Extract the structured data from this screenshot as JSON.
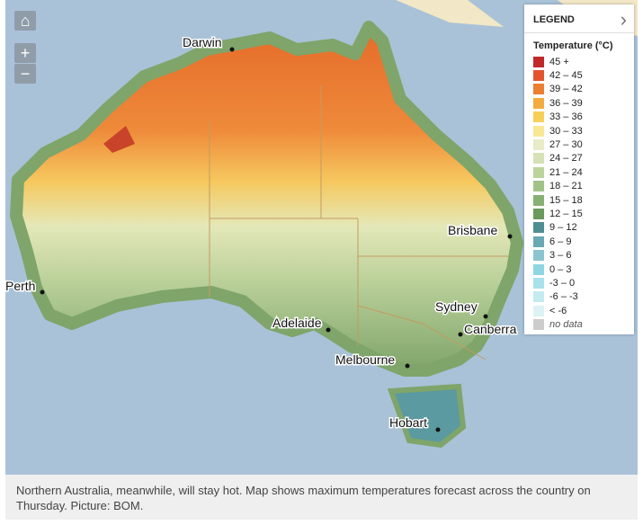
{
  "cities": [
    "Darwin",
    "Brisbane",
    "Perth",
    "Sydney",
    "Adelaide",
    "Canberra",
    "Melbourne",
    "Hobart"
  ],
  "legend": {
    "title": "LEGEND",
    "subtitle": "Temperature (°C)",
    "items": [
      {
        "label": "45 +",
        "color": "#c0282a"
      },
      {
        "label": "42 – 45",
        "color": "#e2542e"
      },
      {
        "label": "39 – 42",
        "color": "#eb7f33"
      },
      {
        "label": "36 – 39",
        "color": "#f2ac3e"
      },
      {
        "label": "33 – 36",
        "color": "#f7cf59"
      },
      {
        "label": "30 – 33",
        "color": "#f8e795"
      },
      {
        "label": "27 – 30",
        "color": "#e8ebc7"
      },
      {
        "label": "24 – 27",
        "color": "#d4e2b6"
      },
      {
        "label": "21 – 24",
        "color": "#bcd39e"
      },
      {
        "label": "18 – 21",
        "color": "#a2c388"
      },
      {
        "label": "15 – 18",
        "color": "#87b173"
      },
      {
        "label": "12 – 15",
        "color": "#6a9a5c"
      },
      {
        "label": "9 – 12",
        "color": "#4e8f93"
      },
      {
        "label": "6 – 9",
        "color": "#68a9b2"
      },
      {
        "label": "3 – 6",
        "color": "#8ac5cf"
      },
      {
        "label": "0 – 3",
        "color": "#8fd6e3"
      },
      {
        "label": "-3 – 0",
        "color": "#a7e2ea"
      },
      {
        "label": "-6 – -3",
        "color": "#c4ebef"
      },
      {
        "label": "< -6",
        "color": "#ddf2f4"
      },
      {
        "label": "no data",
        "color": "#cccccc"
      }
    ]
  },
  "caption": "Northern Australia, meanwhile, will stay hot. Map shows maximum temperatures forecast across the country on Thursday. Picture: BOM."
}
